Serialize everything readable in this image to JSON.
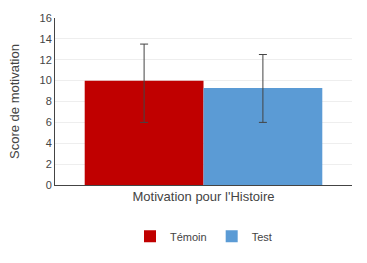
{
  "chart_data": {
    "type": "bar",
    "xlabel": "Motivation pour l'Histoire",
    "ylabel": "Score de motivation",
    "categories": [
      null
    ],
    "series": [
      {
        "name": "Témoin",
        "color": "#c00000",
        "values": [
          10.0
        ],
        "error_upper": [
          3.5
        ],
        "error_lower": [
          4.0
        ]
      },
      {
        "name": "Test",
        "color": "#5b9bd5",
        "values": [
          9.3
        ],
        "error_upper": [
          3.2
        ],
        "error_lower": [
          3.3
        ]
      }
    ],
    "ylim": [
      0,
      16
    ],
    "yticks": [
      0,
      2,
      4,
      6,
      8,
      10,
      12,
      14,
      16
    ],
    "grid": true,
    "legend": "bottom",
    "tick_labels": "y"
  }
}
